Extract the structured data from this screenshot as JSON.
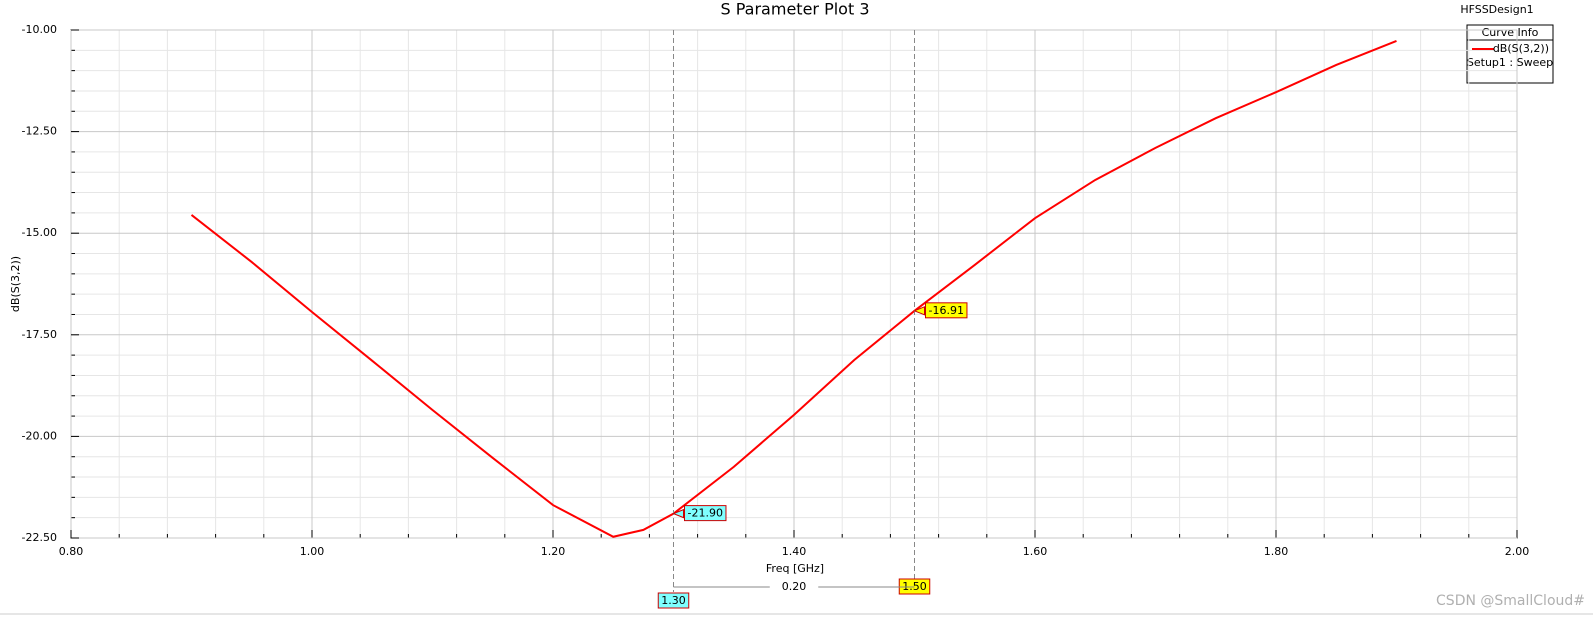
{
  "chart_data": {
    "type": "line",
    "title": "S Parameter Plot 3",
    "design": "HFSSDesign1",
    "xlabel": "Freq [GHz]",
    "ylabel": "dB(S(3,2))",
    "legend_title": "Curve Info",
    "legend_subtitle": "Setup1 : Sweep",
    "legend": "top-right",
    "grid": true,
    "xlim": [
      0.8,
      2.0
    ],
    "ylim": [
      -22.5,
      -10.0
    ],
    "xticks": [
      {
        "value": 0.8,
        "label": "0.80"
      },
      {
        "value": 1.0,
        "label": "1.00"
      },
      {
        "value": 1.2,
        "label": "1.20"
      },
      {
        "value": 1.4,
        "label": "1.40"
      },
      {
        "value": 1.6,
        "label": "1.60"
      },
      {
        "value": 1.8,
        "label": "1.80"
      },
      {
        "value": 2.0,
        "label": "2.00"
      }
    ],
    "yticks": [
      {
        "value": -22.5,
        "label": "-22.50"
      },
      {
        "value": -20,
        "label": "-20.00"
      },
      {
        "value": -17.5,
        "label": "-17.50"
      },
      {
        "value": -15,
        "label": "-15.00"
      },
      {
        "value": -12.5,
        "label": "-12.50"
      },
      {
        "value": -10,
        "label": "-10.00"
      }
    ],
    "x": [
      0.9,
      0.95,
      1.0,
      1.05,
      1.1,
      1.15,
      1.2,
      1.25,
      1.275,
      1.3,
      1.35,
      1.4,
      1.45,
      1.5,
      1.55,
      1.6,
      1.65,
      1.7,
      1.75,
      1.8,
      1.85,
      1.9
    ],
    "series": [
      {
        "name": "dB(S(3,2))",
        "color": "#ff0000",
        "values": [
          -14.55,
          -15.71,
          -16.94,
          -18.14,
          -19.35,
          -20.53,
          -21.69,
          -22.47,
          -22.3,
          -21.9,
          -20.75,
          -19.47,
          -18.12,
          -16.91,
          -15.78,
          -14.63,
          -13.69,
          -12.9,
          -12.17,
          -11.53,
          -10.86,
          -10.27
        ]
      }
    ],
    "markers": [
      {
        "x": {
          "value": 1.3,
          "label": "1.30"
        },
        "y": {
          "value": -21.9,
          "label": "-21.90"
        },
        "color": "#7fffff"
      },
      {
        "x": {
          "value": 1.5,
          "label": "1.50"
        },
        "y": {
          "value": -16.91,
          "label": "-16.91"
        },
        "color": "#ffff00"
      }
    ],
    "delta": {
      "value": 0.2,
      "label": "0.20"
    },
    "watermark": "CSDN @SmallCloud#"
  }
}
